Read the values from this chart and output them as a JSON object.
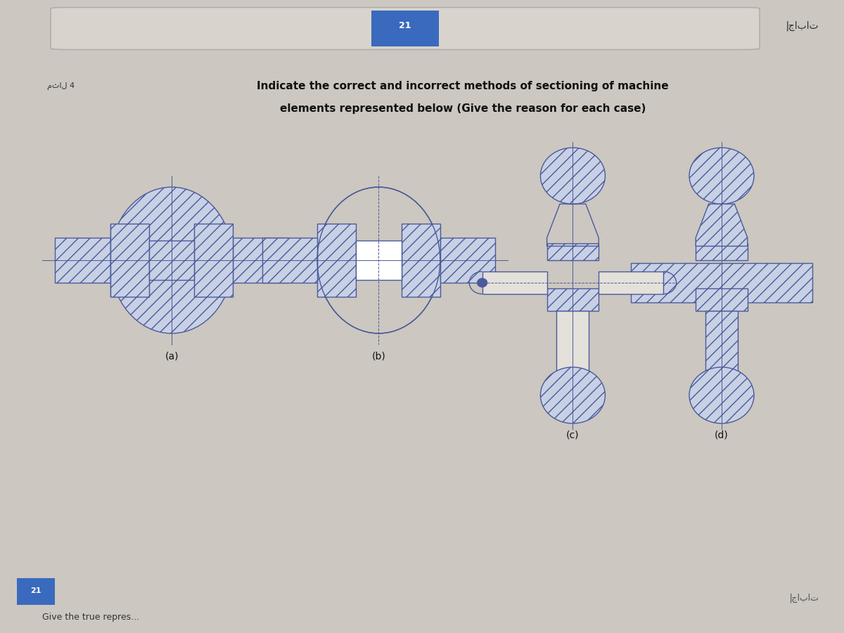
{
  "bg_color": "#ccc7c0",
  "card_color": "#e4e0da",
  "title_line1": "Indicate the correct and incorrect methods of sectioning of machine",
  "title_line2": "elements represented below (Give the reason for each case)",
  "label_a": "(a)",
  "label_b": "(b)",
  "label_c": "(c)",
  "label_d": "(d)",
  "question_label": "مثال 4",
  "hatch_color": "#4a5a9a",
  "line_color": "#4a5a9a",
  "hatch_fc": "#c8d0e4",
  "header_bg": "#b8b0a8",
  "top_bar_color": "#b0a8a0",
  "arabic_text": "إجابات",
  "blue_btn_color": "#3a6abd",
  "white": "#ffffff",
  "card_border": "#c0bab2"
}
